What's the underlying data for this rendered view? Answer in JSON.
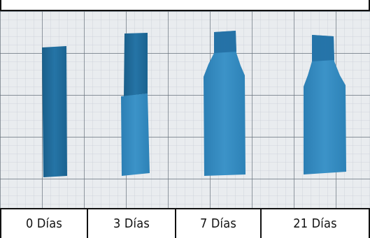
{
  "panel_labels": [
    "0 Días",
    "3 Días",
    "7 Días",
    "21 Días"
  ],
  "colors": {
    "strip_dark": "#1f6e9e",
    "strip_light": "#3a8fc3",
    "grid_paper": "#e9ecef",
    "grid_line": "#6f7884"
  }
}
